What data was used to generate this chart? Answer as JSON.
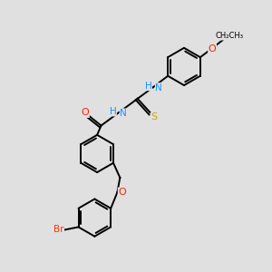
{
  "bg_color": "#e0e0e0",
  "bond_color": "#000000",
  "atom_colors": {
    "N": "#1e90ff",
    "O": "#ff2200",
    "S": "#ccaa00",
    "Br": "#ff3300",
    "C": "#000000",
    "H_color": "#888888"
  },
  "figsize": [
    3.0,
    3.0
  ],
  "dpi": 100,
  "xlim": [
    0,
    10
  ],
  "ylim": [
    0,
    10
  ]
}
